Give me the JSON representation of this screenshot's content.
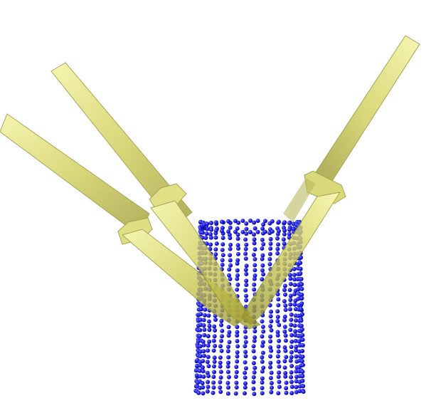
{
  "scene": {
    "background": "#ffffff",
    "colors": {
      "points": "#1f1fe0",
      "point_highlight": "#6a6aff",
      "point_shadow": "#0b0b8a",
      "gripper_fill": "#c9c84a",
      "gripper_light": "#f2f29a",
      "gripper_dark": "#8e8d2c"
    },
    "object": "point-cloud-cylinder",
    "gripper_count": 3,
    "opacity": 0.72
  }
}
